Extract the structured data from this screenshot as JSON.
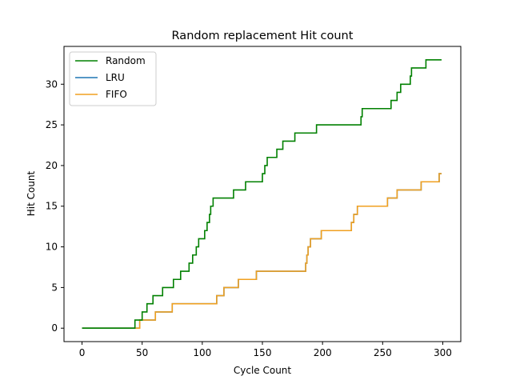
{
  "chart_data": {
    "type": "line",
    "title": "Random replacement Hit count",
    "xlabel": "Cycle Count",
    "ylabel": "Hit Count",
    "xlim": [
      -15,
      315
    ],
    "ylim": [
      -1.65,
      34.65
    ],
    "xticks": [
      0,
      50,
      100,
      150,
      200,
      250,
      300
    ],
    "yticks": [
      0,
      5,
      10,
      15,
      20,
      25,
      30
    ],
    "grid": false,
    "legend_position": "top-left",
    "series": [
      {
        "name": "Random",
        "color": "#008000",
        "step_changes": [
          [
            0,
            0
          ],
          [
            44,
            1
          ],
          [
            50,
            2
          ],
          [
            54,
            3
          ],
          [
            59,
            4
          ],
          [
            65,
            4
          ],
          [
            67,
            5
          ],
          [
            76,
            6
          ],
          [
            79,
            6
          ],
          [
            82,
            7
          ],
          [
            86,
            7
          ],
          [
            89,
            8
          ],
          [
            92,
            9
          ],
          [
            95,
            10
          ],
          [
            97,
            11
          ],
          [
            101,
            11
          ],
          [
            102,
            12
          ],
          [
            104,
            13
          ],
          [
            106,
            14
          ],
          [
            107,
            15
          ],
          [
            109,
            16
          ],
          [
            119,
            16
          ],
          [
            126,
            17
          ],
          [
            130,
            17
          ],
          [
            136,
            18
          ],
          [
            148,
            18
          ],
          [
            150,
            19
          ],
          [
            152,
            20
          ],
          [
            154,
            21
          ],
          [
            160,
            21
          ],
          [
            162,
            22
          ],
          [
            167,
            23
          ],
          [
            175,
            23
          ],
          [
            177,
            24
          ],
          [
            187,
            24
          ],
          [
            195,
            25
          ],
          [
            230,
            25
          ],
          [
            232,
            26
          ],
          [
            233,
            27
          ],
          [
            256,
            27
          ],
          [
            257,
            28
          ],
          [
            260,
            28
          ],
          [
            262,
            29
          ],
          [
            265,
            30
          ],
          [
            272,
            30
          ],
          [
            273,
            31
          ],
          [
            274,
            32
          ],
          [
            286,
            33
          ],
          [
            299,
            33
          ]
        ]
      },
      {
        "name": "LRU",
        "color": "#1f77b4",
        "step_changes": [
          [
            0,
            0
          ],
          [
            46,
            0
          ],
          [
            48,
            1
          ],
          [
            59,
            1
          ],
          [
            61,
            2
          ],
          [
            73,
            2
          ],
          [
            75,
            3
          ],
          [
            108,
            3
          ],
          [
            112,
            4
          ],
          [
            118,
            5
          ],
          [
            127,
            5
          ],
          [
            130,
            6
          ],
          [
            143,
            6
          ],
          [
            145,
            7
          ],
          [
            185,
            7
          ],
          [
            186,
            8
          ],
          [
            187,
            9
          ],
          [
            188,
            10
          ],
          [
            190,
            11
          ],
          [
            197,
            11
          ],
          [
            199,
            12
          ],
          [
            222,
            12
          ],
          [
            224,
            13
          ],
          [
            226,
            14
          ],
          [
            229,
            15
          ],
          [
            252,
            15
          ],
          [
            254,
            16
          ],
          [
            260,
            16
          ],
          [
            262,
            17
          ],
          [
            280,
            17
          ],
          [
            282,
            18
          ],
          [
            296,
            18
          ],
          [
            297,
            19
          ],
          [
            299,
            19
          ]
        ]
      },
      {
        "name": "FIFO",
        "color": "#f0a020",
        "step_changes": [
          [
            0,
            0
          ],
          [
            46,
            0
          ],
          [
            48,
            1
          ],
          [
            59,
            1
          ],
          [
            61,
            2
          ],
          [
            73,
            2
          ],
          [
            75,
            3
          ],
          [
            108,
            3
          ],
          [
            112,
            4
          ],
          [
            118,
            5
          ],
          [
            127,
            5
          ],
          [
            130,
            6
          ],
          [
            143,
            6
          ],
          [
            145,
            7
          ],
          [
            185,
            7
          ],
          [
            186,
            8
          ],
          [
            187,
            9
          ],
          [
            188,
            10
          ],
          [
            190,
            11
          ],
          [
            197,
            11
          ],
          [
            199,
            12
          ],
          [
            222,
            12
          ],
          [
            224,
            13
          ],
          [
            226,
            14
          ],
          [
            229,
            15
          ],
          [
            252,
            15
          ],
          [
            254,
            16
          ],
          [
            260,
            16
          ],
          [
            262,
            17
          ],
          [
            280,
            17
          ],
          [
            282,
            18
          ],
          [
            296,
            18
          ],
          [
            297,
            19
          ],
          [
            299,
            19
          ]
        ]
      }
    ]
  }
}
